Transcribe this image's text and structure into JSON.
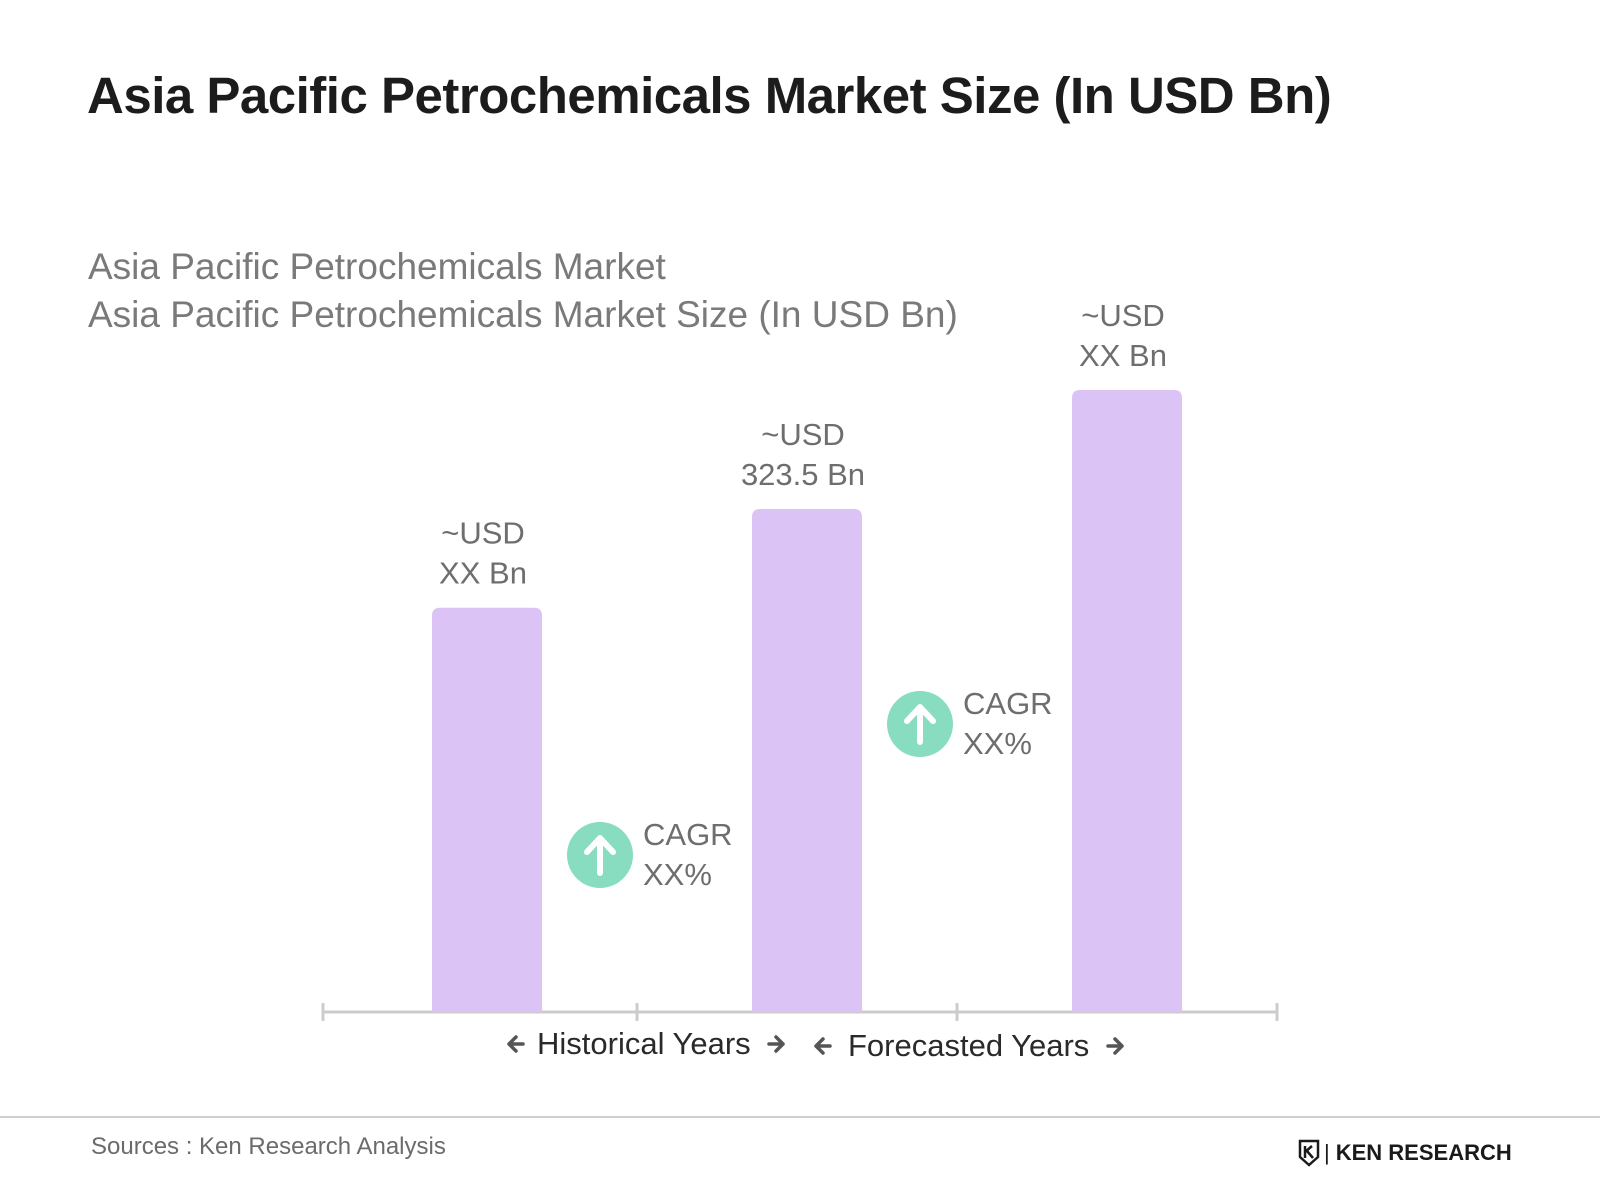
{
  "header": {
    "title": "Asia Pacific Petrochemicals Market Size (In USD Bn)"
  },
  "chart_data": {
    "type": "bar",
    "title": "Asia Pacific Petrochemicals Market Size (In USD Bn)",
    "subtitle_line1": "Asia Pacific Petrochemicals Market",
    "subtitle_line2": "Asia Pacific Petrochemicals Market Size (In USD Bn)",
    "categories": [
      "",
      "",
      ""
    ],
    "values": [
      260,
      323.5,
      400
    ],
    "value_label_line1": [
      "~USD",
      "~USD",
      "~USD"
    ],
    "value_label_line2": [
      "XX Bn",
      "323.5 Bn",
      "XX Bn"
    ],
    "bar_color": "#dcc3f5",
    "ylim": [
      0,
      400
    ],
    "grid": false,
    "cagr": [
      {
        "label": "CAGR",
        "value": "XX%"
      },
      {
        "label": "CAGR",
        "value": "XX%"
      }
    ],
    "cagr_color": "#88dcc0",
    "axis_color": "#cccccc",
    "periods": [
      {
        "label": "Historical Years"
      },
      {
        "label": "Forecasted Years"
      }
    ]
  },
  "footer": {
    "source": "Sources : Ken Research Analysis",
    "brand": "KEN RESEARCH",
    "brand_icon": "ken-research-logo-icon"
  }
}
